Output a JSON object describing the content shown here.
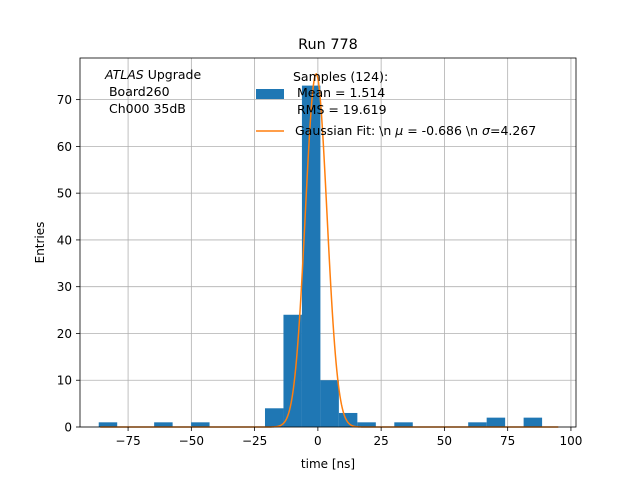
{
  "chart_data": {
    "type": "bar",
    "title": "Run 778",
    "xlabel": "time [ns]",
    "ylabel": "Entries",
    "xlim": [
      -94,
      102
    ],
    "ylim": [
      0,
      78.9
    ],
    "xticks": [
      -75,
      -50,
      -25,
      0,
      25,
      50,
      75,
      100
    ],
    "xtick_labels": [
      "−75",
      "−50",
      "−25",
      "0",
      "25",
      "50",
      "75",
      "100"
    ],
    "yticks": [
      0,
      10,
      20,
      30,
      40,
      50,
      60,
      70
    ],
    "ytick_labels": [
      "0",
      "10",
      "20",
      "30",
      "40",
      "50",
      "60",
      "70"
    ],
    "grid": true,
    "colors": {
      "histogram": "#1f77b4",
      "fit": "#ff7f0e"
    },
    "histogram": {
      "name": "Samples (124):\n Mean = 1.514\n RMS = 19.619",
      "bin_edges": [
        -86.6,
        -79.3,
        -72.0,
        -64.7,
        -57.4,
        -50.1,
        -42.8,
        -35.5,
        -28.2,
        -20.9,
        -13.6,
        -6.3,
        1.0,
        8.3,
        15.6,
        22.9,
        30.2,
        37.5,
        44.8,
        52.1,
        59.4,
        66.7,
        74.0,
        81.3,
        88.6,
        95.9
      ],
      "counts": [
        1,
        0,
        0,
        1,
        0,
        1,
        0,
        0,
        0,
        4,
        24,
        73,
        10,
        3,
        1,
        0,
        1,
        0,
        0,
        0,
        1,
        2,
        0,
        2,
        0
      ]
    },
    "fit": {
      "name": "Gaussian Fit: \\n μ = -0.686 \\n σ=4.267",
      "mu": -0.686,
      "sigma": 4.267,
      "amplitude": 75.5
    },
    "annotation": {
      "italic": "ATLAS",
      "line1_rest": " Upgrade",
      "line2": " Board260",
      "line3": " Ch000 35dB"
    },
    "legend": {
      "location": "top-center",
      "hist_lines": [
        "Samples (124):",
        " Mean = 1.514",
        " RMS = 19.619"
      ],
      "fit_prefix": "Gaussian Fit: \\n ",
      "fit_mu_sym": "μ",
      "fit_mid": " = -0.686 \\n ",
      "fit_sigma_sym": "σ",
      "fit_suffix": "=4.267"
    }
  }
}
